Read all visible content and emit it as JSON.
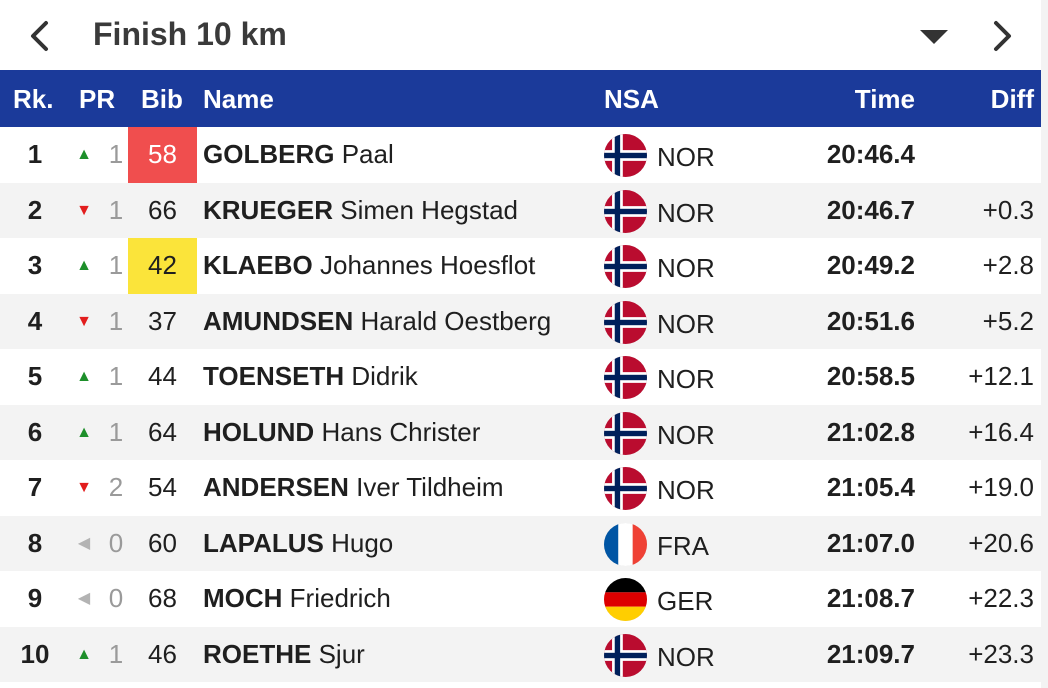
{
  "header": {
    "title": "Finish 10 km"
  },
  "columns": {
    "rank": "Rk.",
    "pr": "PR",
    "bib": "Bib",
    "name": "Name",
    "nsa": "NSA",
    "time": "Time",
    "diff": "Diff"
  },
  "colors": {
    "header_bg": "#1b3a9a",
    "bib_red": "#f04e4e",
    "bib_yellow": "#fbe43a",
    "up": "#1d8f2a",
    "down": "#e21d1d"
  },
  "rows": [
    {
      "rank": "1",
      "pr_dir": "up",
      "pr_icon": "▲",
      "pr": "1",
      "bib": "58",
      "bib_highlight": "red",
      "surname": "GOLBERG",
      "given": "Paal",
      "flag": "norway-flag-icon",
      "nsa": "NOR",
      "time": "20:46.4",
      "diff": ""
    },
    {
      "rank": "2",
      "pr_dir": "down",
      "pr_icon": "▼",
      "pr": "1",
      "bib": "66",
      "bib_highlight": "",
      "surname": "KRUEGER",
      "given": "Simen Hegstad",
      "flag": "norway-flag-icon",
      "nsa": "NOR",
      "time": "20:46.7",
      "diff": "+0.3"
    },
    {
      "rank": "3",
      "pr_dir": "up",
      "pr_icon": "▲",
      "pr": "1",
      "bib": "42",
      "bib_highlight": "yellow",
      "surname": "KLAEBO",
      "given": "Johannes Hoesflot",
      "flag": "norway-flag-icon",
      "nsa": "NOR",
      "time": "20:49.2",
      "diff": "+2.8"
    },
    {
      "rank": "4",
      "pr_dir": "down",
      "pr_icon": "▼",
      "pr": "1",
      "bib": "37",
      "bib_highlight": "",
      "surname": "AMUNDSEN",
      "given": "Harald Oestberg",
      "flag": "norway-flag-icon",
      "nsa": "NOR",
      "time": "20:51.6",
      "diff": "+5.2"
    },
    {
      "rank": "5",
      "pr_dir": "up",
      "pr_icon": "▲",
      "pr": "1",
      "bib": "44",
      "bib_highlight": "",
      "surname": "TOENSETH",
      "given": "Didrik",
      "flag": "norway-flag-icon",
      "nsa": "NOR",
      "time": "20:58.5",
      "diff": "+12.1"
    },
    {
      "rank": "6",
      "pr_dir": "up",
      "pr_icon": "▲",
      "pr": "1",
      "bib": "64",
      "bib_highlight": "",
      "surname": "HOLUND",
      "given": "Hans Christer",
      "flag": "norway-flag-icon",
      "nsa": "NOR",
      "time": "21:02.8",
      "diff": "+16.4"
    },
    {
      "rank": "7",
      "pr_dir": "down",
      "pr_icon": "▼",
      "pr": "2",
      "bib": "54",
      "bib_highlight": "",
      "surname": "ANDERSEN",
      "given": "Iver Tildheim",
      "flag": "norway-flag-icon",
      "nsa": "NOR",
      "time": "21:05.4",
      "diff": "+19.0"
    },
    {
      "rank": "8",
      "pr_dir": "same",
      "pr_icon": "◀",
      "pr": "0",
      "bib": "60",
      "bib_highlight": "",
      "surname": "LAPALUS",
      "given": "Hugo",
      "flag": "france-flag-icon",
      "nsa": "FRA",
      "time": "21:07.0",
      "diff": "+20.6"
    },
    {
      "rank": "9",
      "pr_dir": "same",
      "pr_icon": "◀",
      "pr": "0",
      "bib": "68",
      "bib_highlight": "",
      "surname": "MOCH",
      "given": "Friedrich",
      "flag": "germany-flag-icon",
      "nsa": "GER",
      "time": "21:08.7",
      "diff": "+22.3"
    },
    {
      "rank": "10",
      "pr_dir": "up",
      "pr_icon": "▲",
      "pr": "1",
      "bib": "46",
      "bib_highlight": "",
      "surname": "ROETHE",
      "given": "Sjur",
      "flag": "norway-flag-icon",
      "nsa": "NOR",
      "time": "21:09.7",
      "diff": "+23.3"
    }
  ]
}
